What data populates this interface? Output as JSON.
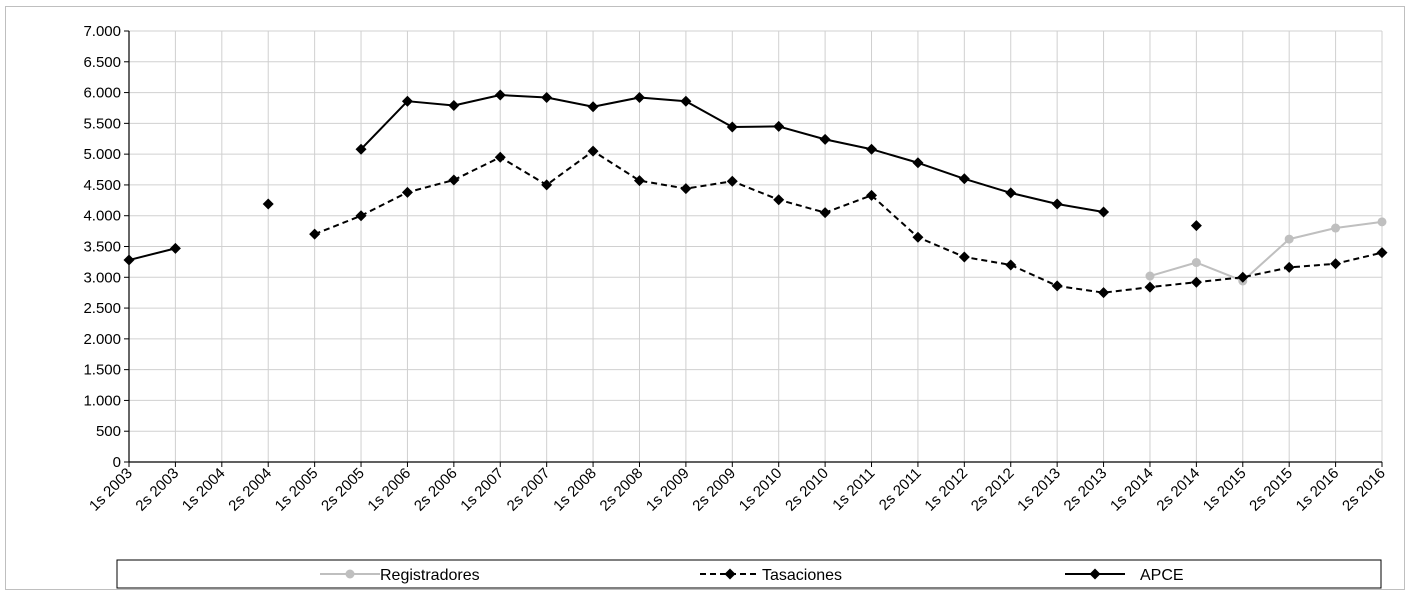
{
  "chart_data": {
    "type": "line",
    "categories": [
      "1s 2003",
      "2s 2003",
      "1s 2004",
      "2s 2004",
      "1s 2005",
      "2s 2005",
      "1s 2006",
      "2s 2006",
      "1s 2007",
      "2s 2007",
      "1s 2008",
      "2s 2008",
      "1s 2009",
      "2s 2009",
      "1s 2010",
      "2s 2010",
      "1s 2011",
      "2s 2011",
      "1s 2012",
      "2s 2012",
      "1s 2013",
      "2s 2013",
      "1s 2014",
      "2s 2014",
      "1s 2015",
      "2s 2015",
      "1s 2016",
      "2s 2016"
    ],
    "ylim": [
      0,
      7000
    ],
    "yticks": [
      0,
      500,
      1000,
      1500,
      2000,
      2500,
      3000,
      3500,
      4000,
      4500,
      5000,
      5500,
      6000,
      6500,
      7000
    ],
    "ytick_labels": [
      "0",
      "500",
      "1.000",
      "1.500",
      "2.000",
      "2.500",
      "3.000",
      "3.500",
      "4.000",
      "4.500",
      "5.000",
      "5.500",
      "6.000",
      "6.500",
      "7.000"
    ],
    "grid": true,
    "legend_position": "bottom",
    "series": [
      {
        "name": "Registradores",
        "color": "#bfbfbf",
        "style": "solid",
        "marker": "circle",
        "values": [
          null,
          null,
          null,
          null,
          null,
          null,
          null,
          null,
          null,
          null,
          null,
          null,
          null,
          null,
          null,
          null,
          null,
          null,
          null,
          null,
          null,
          null,
          3020,
          3240,
          2940,
          3620,
          3800,
          3900
        ]
      },
      {
        "name": "Tasaciones",
        "color": "#000000",
        "style": "dashed",
        "marker": "diamond",
        "values": [
          null,
          null,
          null,
          null,
          3700,
          4000,
          4380,
          4580,
          4950,
          4500,
          5050,
          4570,
          4440,
          4560,
          4260,
          4050,
          4330,
          3650,
          3330,
          3200,
          2860,
          2750,
          2840,
          2920,
          3000,
          3160,
          3220,
          3400
        ]
      },
      {
        "name": "APCE",
        "color": "#000000",
        "style": "solid",
        "marker": "diamond",
        "values": [
          3280,
          3470,
          null,
          4190,
          null,
          5080,
          5860,
          5790,
          5960,
          5920,
          5770,
          5920,
          5860,
          5440,
          5450,
          5240,
          5080,
          4860,
          4600,
          4370,
          4190,
          4060,
          null,
          3840,
          null,
          null,
          null,
          null
        ]
      }
    ]
  }
}
